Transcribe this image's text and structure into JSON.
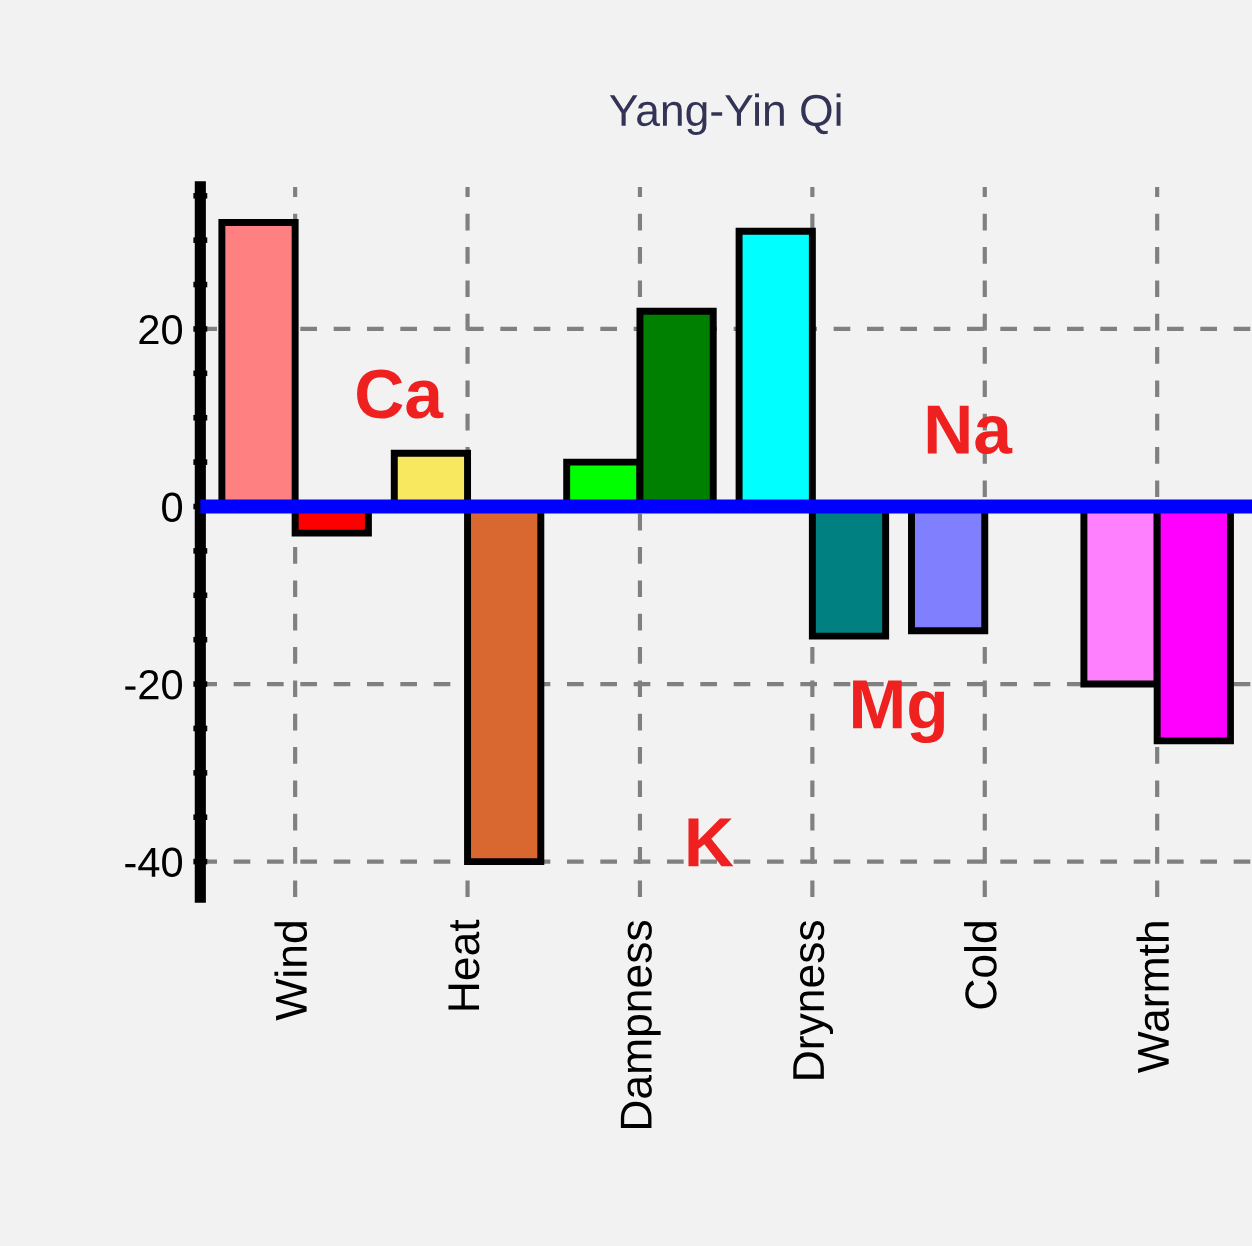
{
  "chart_data": {
    "type": "bar",
    "title": "Yang-Yin Qi",
    "categories": [
      "Wind",
      "Heat",
      "Dampness",
      "Dryness",
      "Cold",
      "Warmth"
    ],
    "series": [
      {
        "colors": [
          "#ff8080",
          "#f8e860",
          "#00ff00",
          "#00ffff",
          "#8080ff",
          "#ff80ff"
        ],
        "values": [
          32,
          6,
          5,
          31,
          -14,
          -20
        ]
      },
      {
        "colors": [
          "#ff0000",
          "#d86830",
          "#008000",
          "#008080",
          null,
          "#ff00ff"
        ],
        "values": [
          -3,
          -40,
          22,
          -14.6,
          null,
          -26.4
        ]
      }
    ],
    "ylim": [
      -44,
      36
    ],
    "yticks": [
      {
        "value": -40,
        "label": "-40"
      },
      {
        "value": -35,
        "label": null
      },
      {
        "value": -30,
        "label": null
      },
      {
        "value": -25,
        "label": null
      },
      {
        "value": -20,
        "label": "-20"
      },
      {
        "value": -15,
        "label": null
      },
      {
        "value": -10,
        "label": null
      },
      {
        "value": -5,
        "label": null
      },
      0,
      {
        "value": 5,
        "label": null
      },
      {
        "value": 10,
        "label": null
      },
      {
        "value": 15,
        "label": null
      },
      {
        "value": 20,
        "label": "20"
      },
      {
        "value": 25,
        "label": null
      },
      {
        "value": 30,
        "label": null
      },
      {
        "value": 35,
        "label": null
      }
    ],
    "grid": true,
    "ref_lines": [
      {
        "axis": "y",
        "value": 0,
        "color": "#0000ff"
      }
    ],
    "annotations": [
      "Ca",
      "K",
      "Na",
      "Mg"
    ]
  }
}
